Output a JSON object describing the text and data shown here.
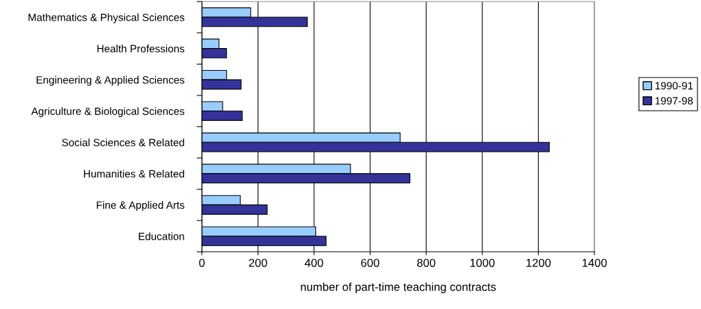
{
  "chart_data": {
    "type": "bar",
    "orientation": "horizontal",
    "xlabel": "number of part-time teaching contracts",
    "categories": [
      "Mathematics & Physical Sciences",
      "Health Professions",
      "Engineering & Applied Sciences",
      "Agriculture & Biological Sciences",
      "Social Sciences & Related",
      "Humanities & Related",
      "Fine & Applied Arts",
      "Education"
    ],
    "series": [
      {
        "name": "1990-91",
        "color": "#99ccff",
        "values": [
          174,
          61,
          88,
          74,
          707,
          530,
          137,
          406
        ]
      },
      {
        "name": "1997-98",
        "color": "#333399",
        "values": [
          376,
          88,
          140,
          144,
          1239,
          742,
          233,
          443
        ]
      }
    ],
    "xlim": [
      0,
      1400
    ],
    "xticks": [
      0,
      200,
      400,
      600,
      800,
      1000,
      1200,
      1400
    ],
    "grid": "x",
    "legend": "right"
  }
}
